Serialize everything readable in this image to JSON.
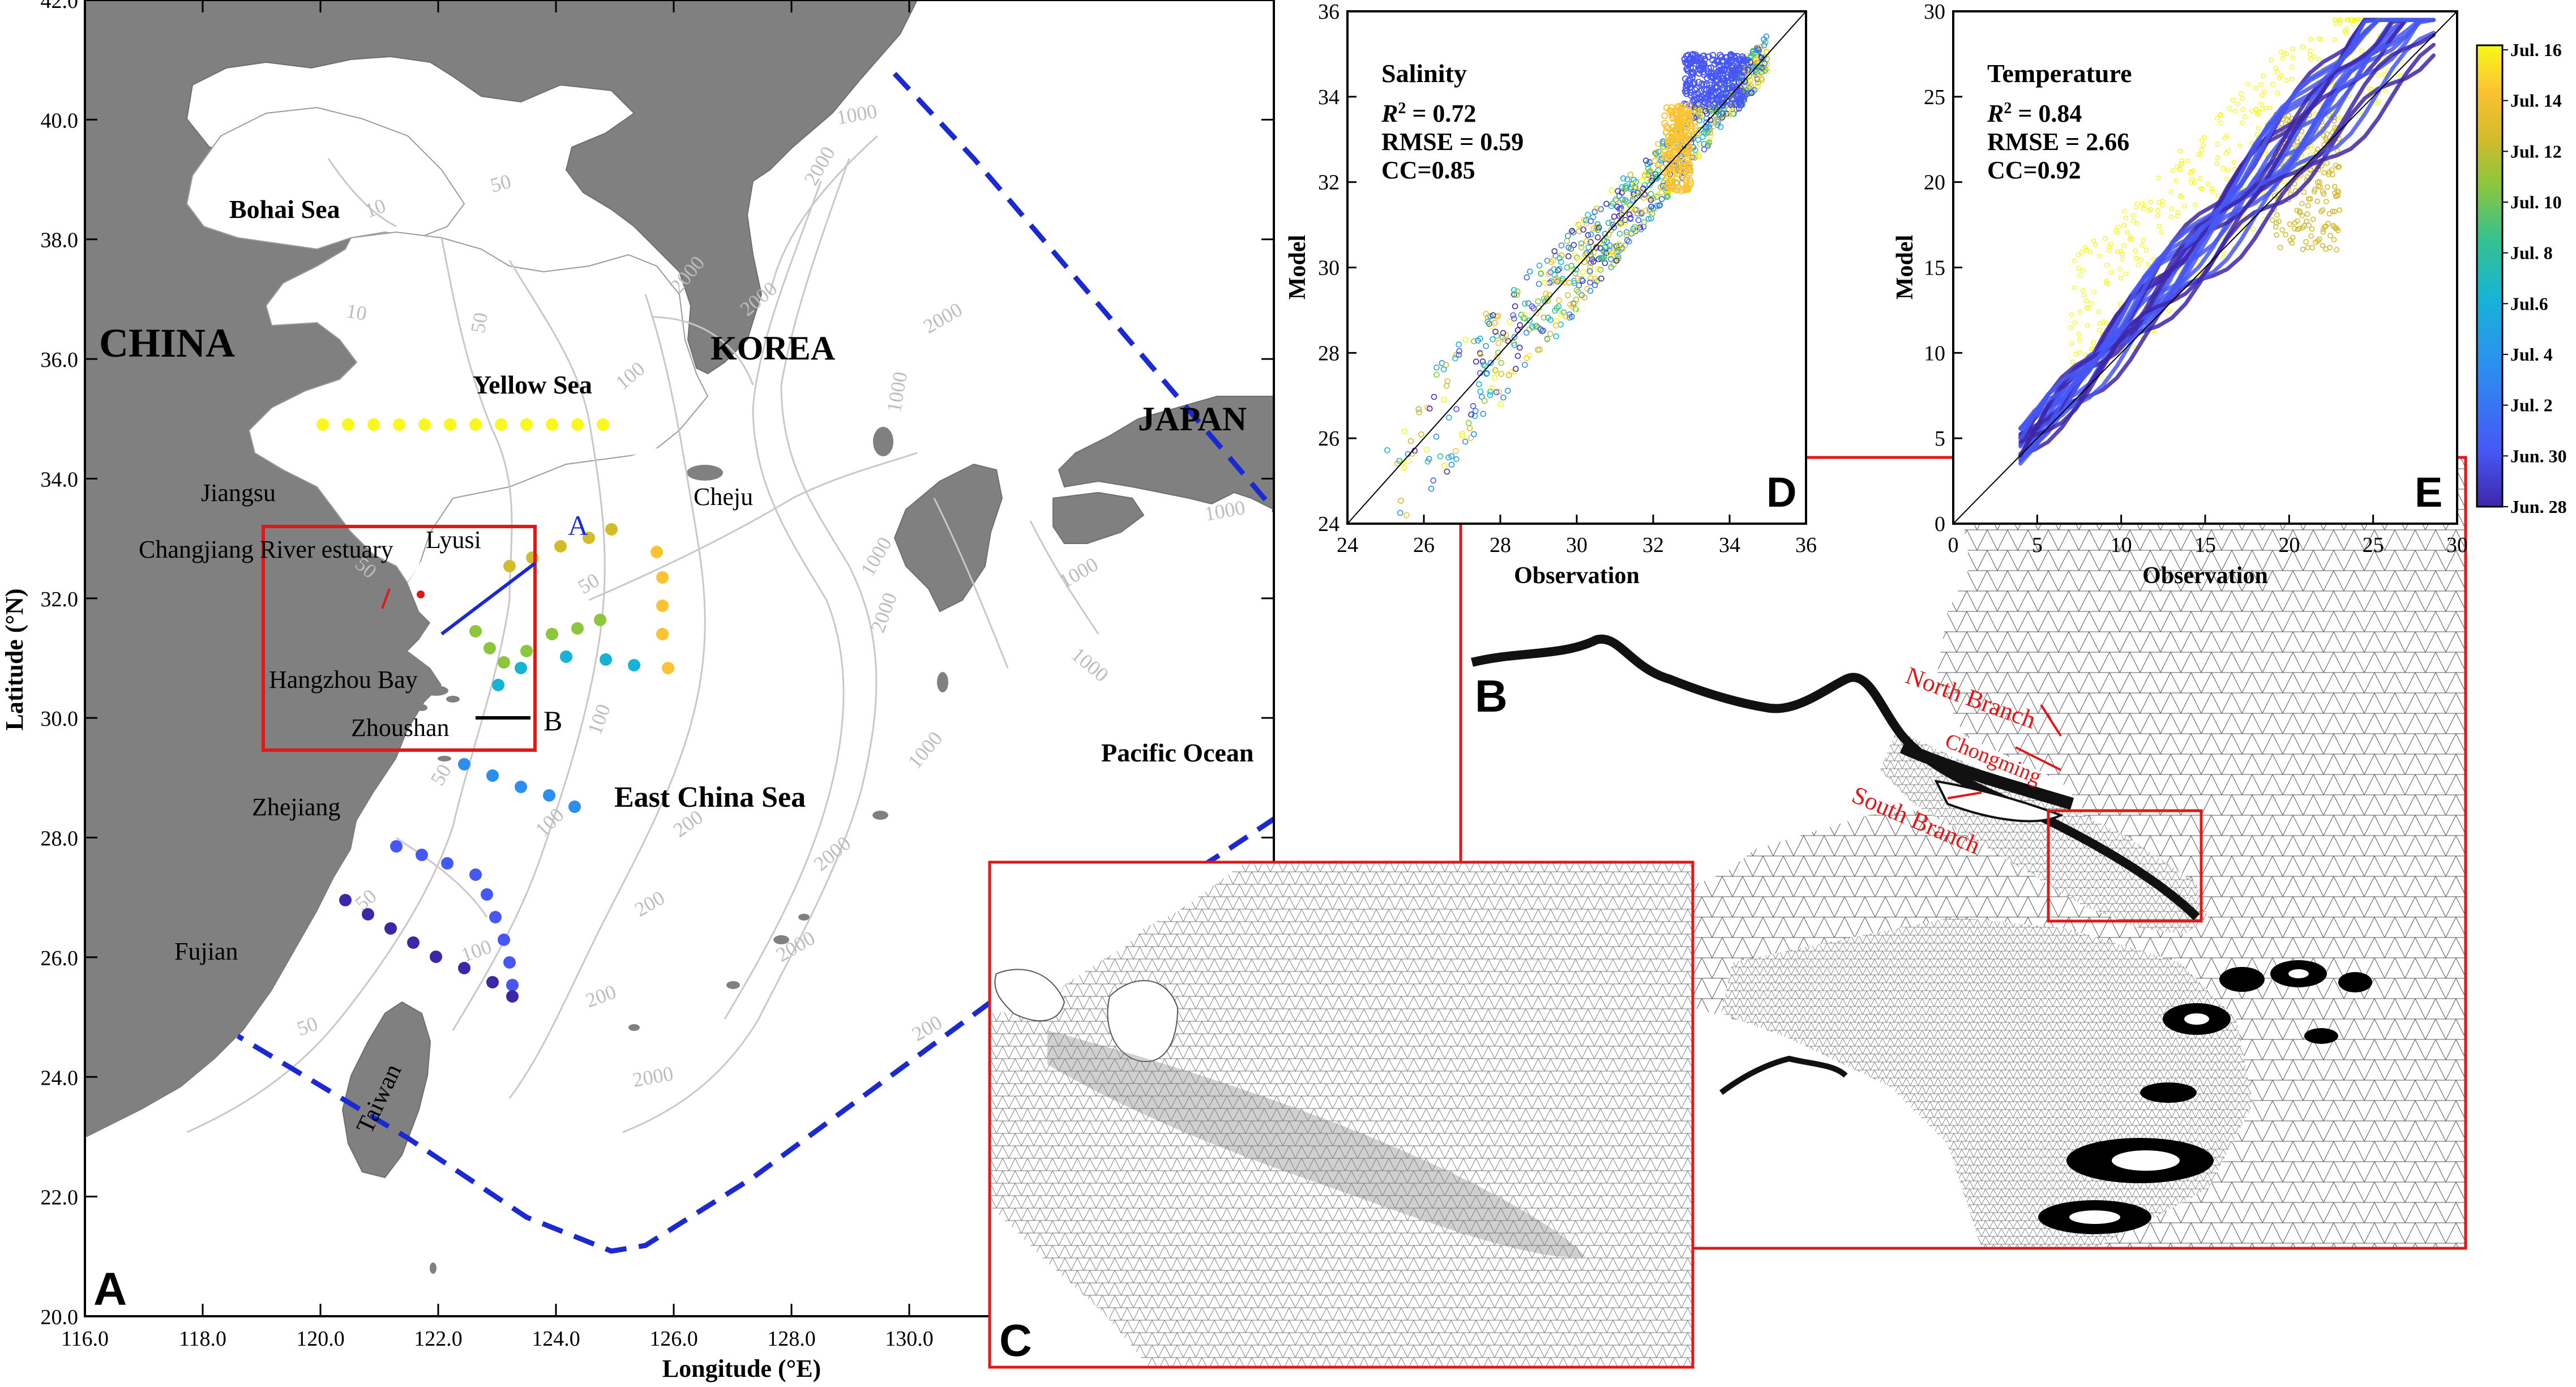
{
  "panel_a": {
    "letter": "A",
    "xlabel": "Longitude (°E)",
    "ylabel": "Latitude (°N)",
    "x_ticks": [
      "116.0",
      "118.0",
      "120.0",
      "122.0",
      "124.0",
      "126.0",
      "128.0",
      "130.0"
    ],
    "y_ticks": [
      "20.0",
      "22.0",
      "24.0",
      "26.0",
      "28.0",
      "30.0",
      "32.0",
      "34.0",
      "36.0",
      "38.0",
      "40.0",
      "42.0"
    ],
    "labels": {
      "china": "CHINA",
      "korea": "KOREA",
      "japan": "JAPAN",
      "bohai": "Bohai Sea",
      "yellow": "Yellow Sea",
      "ecs": "East China Sea",
      "pacific": "Pacific Ocean",
      "jiangsu": "Jiangsu",
      "cje": "Changjiang River estuary",
      "lyusi": "Lyusi",
      "hzb": "Hangzhou Bay",
      "zhoushan": "Zhoushan",
      "zhejiang": "Zhejiang",
      "fujian": "Fujian",
      "taiwan": "Taiwan",
      "cheju": "Cheju",
      "line_a": "A",
      "line_b": "B"
    },
    "contour_labels": [
      "10",
      "10",
      "50",
      "50",
      "50",
      "50",
      "50",
      "50",
      "50",
      "100",
      "100",
      "100",
      "100",
      "200",
      "200",
      "200",
      "200",
      "1000",
      "1000",
      "1000",
      "1000",
      "1000",
      "1000",
      "1000",
      "2000",
      "2000",
      "2000",
      "2000",
      "2000",
      "2000",
      "2000",
      "2000"
    ]
  },
  "panel_d": {
    "letter": "D",
    "title": "Salinity",
    "stat_r2_sym": "R",
    "stat_r2_sup": "2",
    "stat_r2_val": " = 0.72",
    "stat_rmse": "RMSE = 0.59",
    "stat_cc": "CC=0.85",
    "xlabel": "Observation",
    "ylabel": "Model",
    "ticks": [
      "24",
      "26",
      "28",
      "30",
      "32",
      "34",
      "36"
    ]
  },
  "panel_e": {
    "letter": "E",
    "title": "Temperature",
    "stat_r2_sym": "R",
    "stat_r2_sup": "2",
    "stat_r2_val": " = 0.84",
    "stat_rmse": "RMSE = 2.66",
    "stat_cc": "CC=0.92",
    "xlabel": "Observation",
    "ylabel": "Model",
    "ticks": [
      "0",
      "5",
      "10",
      "15",
      "20",
      "25",
      "30"
    ]
  },
  "colorbar": {
    "labels": [
      "Jul. 16",
      "Jul. 14",
      "Jul. 12",
      "Jul. 10",
      "Jul. 8",
      "Jul.6",
      "Jul. 4",
      "Jul. 2",
      "Jun. 30",
      "Jun. 28"
    ],
    "colors": [
      "#3e26a8",
      "#4757f5",
      "#2c8ef0",
      "#17b3d6",
      "#35c28f",
      "#8cc63c",
      "#d4bb2c",
      "#fbc231",
      "#f9f819"
    ]
  },
  "panel_b": {
    "letter": "B",
    "north_branch": "North Branch",
    "chongming": "Chongming",
    "south_branch": "South Branch"
  },
  "panel_c": {
    "letter": "C"
  }
}
